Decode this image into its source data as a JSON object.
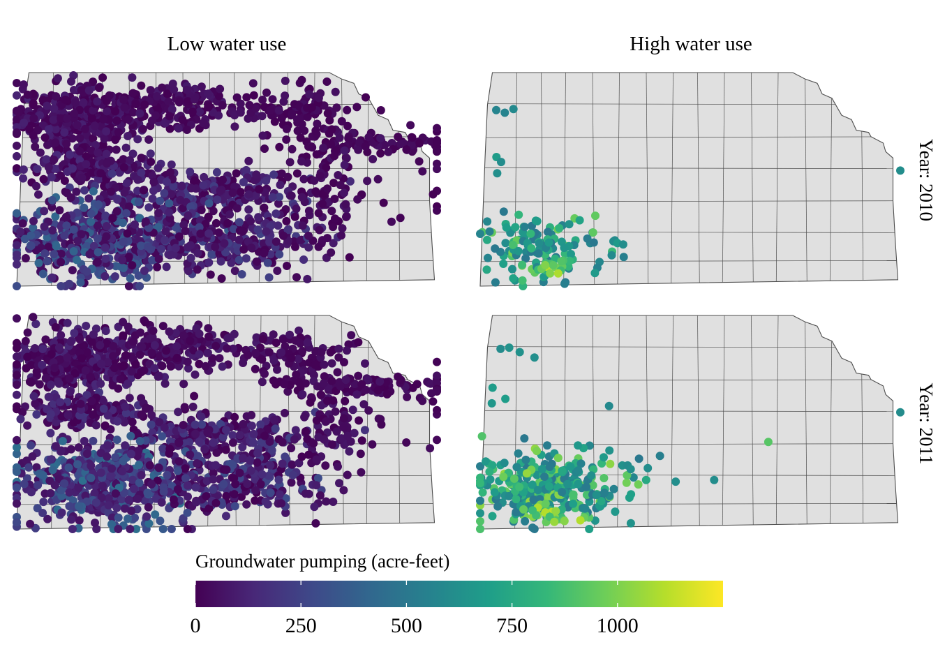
{
  "chart_data": {
    "type": "map",
    "facet_columns": [
      "Low water use",
      "High water use"
    ],
    "facet_rows": [
      "Year:  2010",
      "Year:  2011"
    ],
    "legend": {
      "title": "Groundwater pumping (acre-feet)",
      "ticks": [
        0,
        250,
        500,
        750,
        1000
      ],
      "range": [
        0,
        1250
      ],
      "placement": "bottom",
      "colormap": "viridis",
      "colors": [
        "#440154",
        "#482878",
        "#3e4989",
        "#31688e",
        "#26828e",
        "#1f9e89",
        "#35b779",
        "#6ece58",
        "#b5de2b",
        "#fde725"
      ]
    },
    "base_colors": {
      "state_fill": "#e0e0e0",
      "border": "#4d4d4d"
    },
    "panels": [
      {
        "column": "Low water use",
        "year": 2010,
        "clusters": [
          {
            "cx": 0.12,
            "cy": 0.22,
            "rx": 0.12,
            "ry": 0.14,
            "n": 360,
            "vmin": 0,
            "vmax": 120
          },
          {
            "cx": 0.32,
            "cy": 0.16,
            "rx": 0.14,
            "ry": 0.1,
            "n": 180,
            "vmin": 0,
            "vmax": 90
          },
          {
            "cx": 0.58,
            "cy": 0.18,
            "rx": 0.09,
            "ry": 0.1,
            "n": 90,
            "vmin": 0,
            "vmax": 60
          },
          {
            "cx": 0.72,
            "cy": 0.33,
            "rx": 0.17,
            "ry": 0.04,
            "n": 80,
            "vmin": 0,
            "vmax": 60
          },
          {
            "cx": 0.14,
            "cy": 0.45,
            "rx": 0.13,
            "ry": 0.07,
            "n": 160,
            "vmin": 0,
            "vmax": 150
          },
          {
            "cx": 0.4,
            "cy": 0.56,
            "rx": 0.2,
            "ry": 0.1,
            "n": 240,
            "vmin": 0,
            "vmax": 230
          },
          {
            "cx": 0.17,
            "cy": 0.78,
            "rx": 0.17,
            "ry": 0.18,
            "n": 460,
            "vmin": 20,
            "vmax": 420
          },
          {
            "cx": 0.45,
            "cy": 0.78,
            "rx": 0.18,
            "ry": 0.14,
            "n": 260,
            "vmin": 0,
            "vmax": 260
          },
          {
            "cx": 0.64,
            "cy": 0.5,
            "rx": 0.07,
            "ry": 0.3,
            "n": 100,
            "vmin": 0,
            "vmax": 80
          },
          {
            "cx": 0.86,
            "cy": 0.55,
            "rx": 0.12,
            "ry": 0.35,
            "n": 14,
            "vmin": 0,
            "vmax": 40
          }
        ]
      },
      {
        "column": "High water use",
        "year": 2010,
        "clusters": [
          {
            "cx": 0.13,
            "cy": 0.82,
            "rx": 0.1,
            "ry": 0.13,
            "n": 130,
            "vmin": 500,
            "vmax": 1000
          },
          {
            "cx": 0.14,
            "cy": 0.92,
            "rx": 0.06,
            "ry": 0.05,
            "n": 14,
            "vmin": 850,
            "vmax": 1150
          },
          {
            "cx": 0.06,
            "cy": 0.18,
            "rx": 0.05,
            "ry": 0.04,
            "n": 3,
            "vmin": 550,
            "vmax": 650
          },
          {
            "cx": 0.03,
            "cy": 0.42,
            "rx": 0.02,
            "ry": 0.04,
            "n": 3,
            "vmin": 600,
            "vmax": 700
          },
          {
            "cx": 0.28,
            "cy": 0.78,
            "rx": 0.03,
            "ry": 0.05,
            "n": 3,
            "vmin": 600,
            "vmax": 700
          },
          {
            "cx": 0.9,
            "cy": 0.46,
            "rx": 0.01,
            "ry": 0.01,
            "n": 1,
            "vmin": 600,
            "vmax": 620
          }
        ]
      },
      {
        "column": "Low water use",
        "year": 2011,
        "clusters": [
          {
            "cx": 0.12,
            "cy": 0.22,
            "rx": 0.12,
            "ry": 0.14,
            "n": 360,
            "vmin": 0,
            "vmax": 150
          },
          {
            "cx": 0.32,
            "cy": 0.16,
            "rx": 0.14,
            "ry": 0.1,
            "n": 180,
            "vmin": 0,
            "vmax": 110
          },
          {
            "cx": 0.58,
            "cy": 0.18,
            "rx": 0.09,
            "ry": 0.1,
            "n": 90,
            "vmin": 0,
            "vmax": 70
          },
          {
            "cx": 0.72,
            "cy": 0.33,
            "rx": 0.17,
            "ry": 0.04,
            "n": 80,
            "vmin": 0,
            "vmax": 70
          },
          {
            "cx": 0.14,
            "cy": 0.45,
            "rx": 0.13,
            "ry": 0.07,
            "n": 160,
            "vmin": 0,
            "vmax": 200
          },
          {
            "cx": 0.4,
            "cy": 0.56,
            "rx": 0.2,
            "ry": 0.1,
            "n": 240,
            "vmin": 0,
            "vmax": 260
          },
          {
            "cx": 0.17,
            "cy": 0.78,
            "rx": 0.17,
            "ry": 0.18,
            "n": 460,
            "vmin": 50,
            "vmax": 460
          },
          {
            "cx": 0.45,
            "cy": 0.78,
            "rx": 0.18,
            "ry": 0.14,
            "n": 260,
            "vmin": 0,
            "vmax": 300
          },
          {
            "cx": 0.64,
            "cy": 0.5,
            "rx": 0.07,
            "ry": 0.3,
            "n": 100,
            "vmin": 0,
            "vmax": 90
          },
          {
            "cx": 0.86,
            "cy": 0.55,
            "rx": 0.12,
            "ry": 0.35,
            "n": 12,
            "vmin": 0,
            "vmax": 40
          }
        ]
      },
      {
        "column": "High water use",
        "year": 2011,
        "clusters": [
          {
            "cx": 0.14,
            "cy": 0.8,
            "rx": 0.13,
            "ry": 0.15,
            "n": 320,
            "vmin": 500,
            "vmax": 1050
          },
          {
            "cx": 0.14,
            "cy": 0.93,
            "rx": 0.06,
            "ry": 0.05,
            "n": 24,
            "vmin": 850,
            "vmax": 1200
          },
          {
            "cx": 0.08,
            "cy": 0.18,
            "rx": 0.08,
            "ry": 0.04,
            "n": 4,
            "vmin": 600,
            "vmax": 650
          },
          {
            "cx": 0.03,
            "cy": 0.4,
            "rx": 0.02,
            "ry": 0.04,
            "n": 3,
            "vmin": 650,
            "vmax": 750
          },
          {
            "cx": 0.26,
            "cy": 0.42,
            "rx": 0.01,
            "ry": 0.01,
            "n": 1,
            "vmin": 580,
            "vmax": 600
          },
          {
            "cx": 0.3,
            "cy": 0.7,
            "rx": 0.04,
            "ry": 0.04,
            "n": 5,
            "vmin": 600,
            "vmax": 700
          },
          {
            "cx": 0.43,
            "cy": 0.77,
            "rx": 0.04,
            "ry": 0.02,
            "n": 2,
            "vmin": 580,
            "vmax": 620
          },
          {
            "cx": 0.59,
            "cy": 0.6,
            "rx": 0.01,
            "ry": 0.01,
            "n": 1,
            "vmin": 900,
            "vmax": 920
          },
          {
            "cx": 0.9,
            "cy": 0.46,
            "rx": 0.01,
            "ry": 0.01,
            "n": 1,
            "vmin": 600,
            "vmax": 620
          }
        ]
      }
    ]
  }
}
